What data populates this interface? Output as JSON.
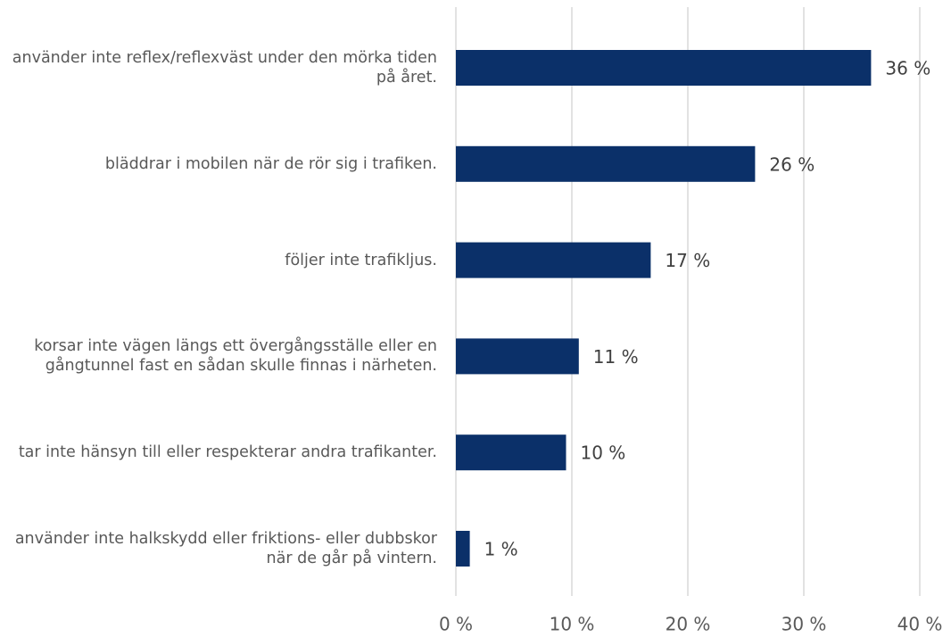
{
  "chart_data": {
    "type": "barh",
    "categories": [
      "använder inte reflex/reflexväst under den mörka tiden på året.",
      "bläddrar i mobilen när de rör sig i trafiken.",
      "följer inte trafikljus.",
      "korsar inte vägen längs ett övergångsställe eller en gångtunnel fast en sådan skulle finnas i närheten.",
      "tar inte hänsyn till eller respekterar andra trafikanter.",
      "använder inte halkskydd eller friktions- eller dubbskor när de går på vintern."
    ],
    "values": [
      35.8,
      25.8,
      16.8,
      10.6,
      9.5,
      1.2
    ],
    "value_labels": [
      "36 %",
      "26 %",
      "17 %",
      "11 %",
      "10 %",
      "1 %"
    ],
    "color": "#0b3069",
    "xlim": [
      0,
      40
    ],
    "xticks": [
      {
        "value": 0,
        "label": "0 %"
      },
      {
        "value": 10,
        "label": "10 %"
      },
      {
        "value": 20,
        "label": "20 %"
      },
      {
        "value": 30,
        "label": "30 %"
      },
      {
        "value": 40,
        "label": "40 %"
      }
    ],
    "grid": true
  }
}
